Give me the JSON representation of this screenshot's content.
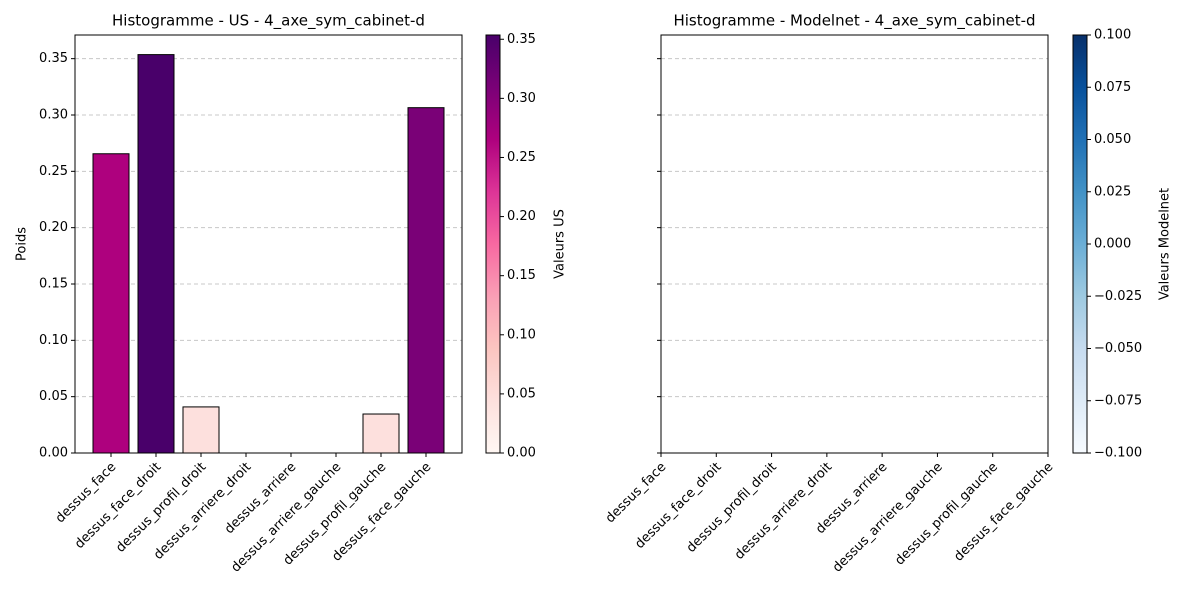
{
  "chart_data": [
    {
      "type": "bar",
      "title": "Histogramme - US - 4_axe_sym_cabinet-d",
      "ylabel": "Poids",
      "categories": [
        "dessus_face",
        "dessus_face_droit",
        "dessus_profil_droit",
        "dessus_arriere_droit",
        "dessus_arriere",
        "dessus_arriere_gauche",
        "dessus_profil_gauche",
        "dessus_face_gauche"
      ],
      "values": [
        0.2656,
        0.3536,
        0.0409,
        0,
        0,
        0,
        0.0346,
        0.3065
      ],
      "colors": [
        "#ae017e",
        "#49006a",
        "#fde0dd",
        "#fff7f3",
        "#fff7f3",
        "#fff7f3",
        "#fde0dd",
        "#7a0177"
      ],
      "edgecolor": "#000000",
      "xlim": [
        -0.8,
        7.8
      ],
      "ylim": [
        0,
        0.371
      ],
      "yticks": [
        {
          "value": 0,
          "label": "0.00"
        },
        {
          "value": 0.05,
          "label": "0.05"
        },
        {
          "value": 0.1,
          "label": "0.10"
        },
        {
          "value": 0.15,
          "label": "0.15"
        },
        {
          "value": 0.2,
          "label": "0.20"
        },
        {
          "value": 0.25,
          "label": "0.25"
        },
        {
          "value": 0.3,
          "label": "0.30"
        },
        {
          "value": 0.35,
          "label": "0.35"
        }
      ],
      "grid": true,
      "colorbar": {
        "label": "Valeurs US",
        "lim": [
          0,
          0.3536
        ],
        "colormap": [
          "#fff7f3",
          "#fde0dd",
          "#fcc5c0",
          "#fa9fb5",
          "#f768a1",
          "#dd3497",
          "#ae017e",
          "#7a0177",
          "#49006a"
        ],
        "ticks": [
          {
            "value": 0,
            "label": "0.00"
          },
          {
            "value": 0.05,
            "label": "0.05"
          },
          {
            "value": 0.1,
            "label": "0.10"
          },
          {
            "value": 0.15,
            "label": "0.15"
          },
          {
            "value": 0.2,
            "label": "0.20"
          },
          {
            "value": 0.25,
            "label": "0.25"
          },
          {
            "value": 0.3,
            "label": "0.30"
          },
          {
            "value": 0.35,
            "label": "0.35"
          }
        ]
      }
    },
    {
      "type": "bar",
      "title": "Histogramme - Modelnet - 4_axe_sym_cabinet-d",
      "categories": [
        "dessus_face",
        "dessus_face_droit",
        "dessus_profil_droit",
        "dessus_arriere_droit",
        "dessus_arriere",
        "dessus_arriere_gauche",
        "dessus_profil_gauche",
        "dessus_face_gauche"
      ],
      "values": [
        0,
        0,
        0,
        0,
        0,
        0,
        0,
        0
      ],
      "edgecolor": "#000000",
      "xlim": [
        0,
        7
      ],
      "ylim": [
        0,
        0.371
      ],
      "yticks": [
        0,
        0.05,
        0.1,
        0.15,
        0.2,
        0.25,
        0.3,
        0.35
      ],
      "sharey": true,
      "grid": true,
      "colorbar": {
        "label": "Valeurs Modelnet",
        "lim": [
          -0.1,
          0.1
        ],
        "colormap": [
          "#f7fbff",
          "#deebf7",
          "#c6dbef",
          "#9ecae1",
          "#6baed6",
          "#4292c6",
          "#2171b5",
          "#08519c",
          "#08306b"
        ],
        "ticks": [
          {
            "value": -0.1,
            "label": "−0.100"
          },
          {
            "value": -0.075,
            "label": "−0.075"
          },
          {
            "value": -0.05,
            "label": "−0.050"
          },
          {
            "value": -0.025,
            "label": "−0.025"
          },
          {
            "value": 0,
            "label": "0.000"
          },
          {
            "value": 0.025,
            "label": "0.025"
          },
          {
            "value": 0.05,
            "label": "0.050"
          },
          {
            "value": 0.075,
            "label": "0.075"
          },
          {
            "value": 0.1,
            "label": "0.100"
          }
        ]
      }
    }
  ]
}
